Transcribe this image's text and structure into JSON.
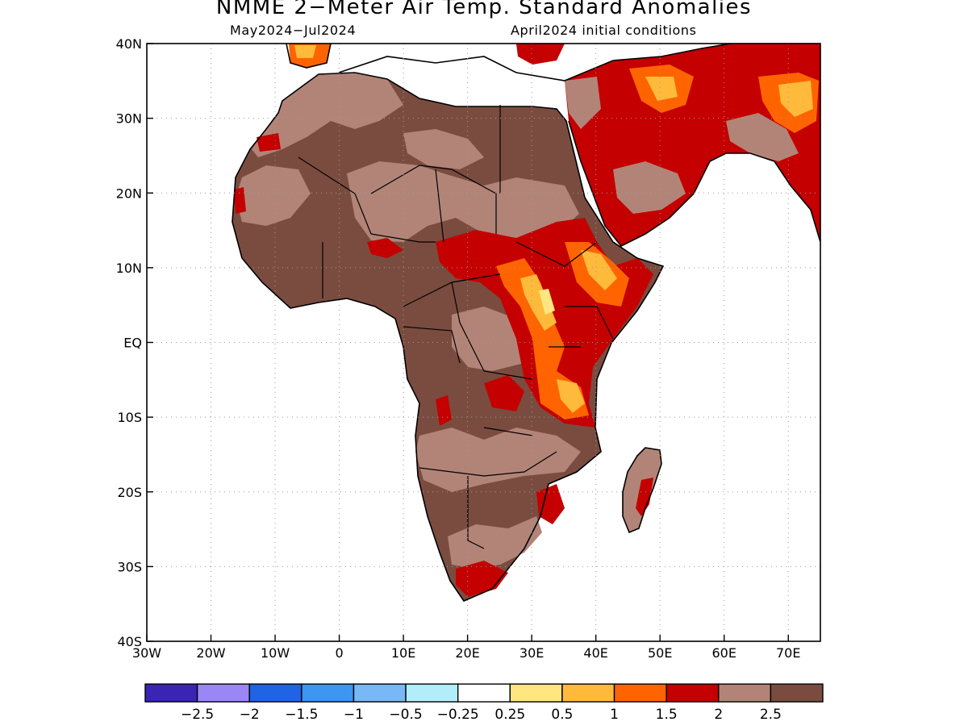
{
  "title": "NMME 2−Meter Air Temp. Standard Anomalies",
  "subtitle_left": "May2024−Jul2024",
  "subtitle_right": "April2024 initial conditions",
  "map": {
    "lon_range": [
      -30,
      75
    ],
    "lat_range": [
      -40,
      40
    ],
    "gridlines": true,
    "lon_ticks": [
      {
        "value": -30,
        "label": "30W"
      },
      {
        "value": -20,
        "label": "20W"
      },
      {
        "value": -10,
        "label": "10W"
      },
      {
        "value": 0,
        "label": "0"
      },
      {
        "value": 10,
        "label": "10E"
      },
      {
        "value": 20,
        "label": "20E"
      },
      {
        "value": 30,
        "label": "30E"
      },
      {
        "value": 40,
        "label": "40E"
      },
      {
        "value": 50,
        "label": "50E"
      },
      {
        "value": 60,
        "label": "60E"
      },
      {
        "value": 70,
        "label": "70E"
      }
    ],
    "lat_ticks": [
      {
        "value": 40,
        "label": "40N"
      },
      {
        "value": 30,
        "label": "30N"
      },
      {
        "value": 20,
        "label": "20N"
      },
      {
        "value": 10,
        "label": "10N"
      },
      {
        "value": 0,
        "label": "EQ"
      },
      {
        "value": -10,
        "label": "10S"
      },
      {
        "value": -20,
        "label": "20S"
      },
      {
        "value": -30,
        "label": "30S"
      },
      {
        "value": -40,
        "label": "40S"
      }
    ]
  },
  "colorbar": {
    "colors": [
      "#3a24b4",
      "#9a86f4",
      "#1e64e4",
      "#3c96f2",
      "#78b8f6",
      "#b2eefa",
      "#ffffff",
      "#ffe680",
      "#ffba3c",
      "#ff6400",
      "#c40000",
      "#b28478",
      "#7a4c40"
    ],
    "labels": [
      "−2.5",
      "−2",
      "−1.5",
      "−1",
      "−0.5",
      "−0.25",
      "0.25",
      "0.5",
      "1",
      "1.5",
      "2",
      "2.5"
    ]
  }
}
